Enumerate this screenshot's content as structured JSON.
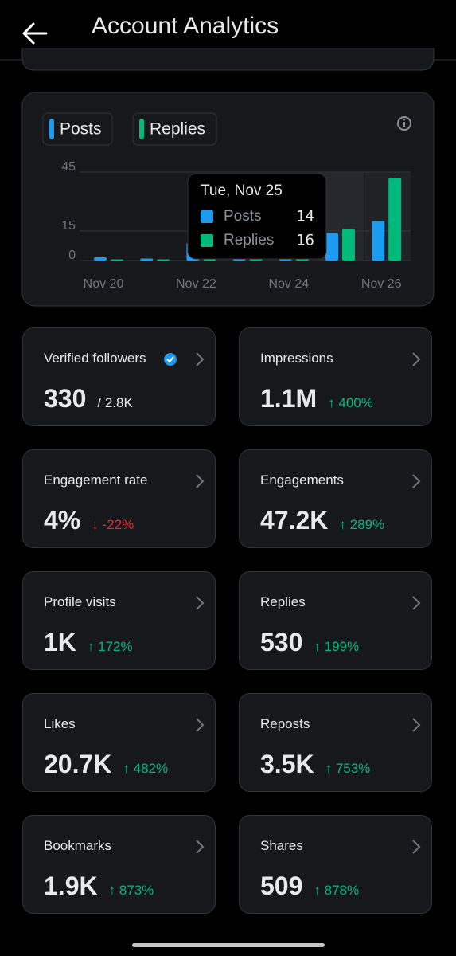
{
  "header": {
    "title": "Account Analytics"
  },
  "chart_data": {
    "type": "bar",
    "categories": [
      "Nov 20",
      null,
      "Nov 22",
      null,
      "Nov 24",
      null,
      "Nov 26"
    ],
    "series": [
      {
        "name": "Posts",
        "color": "#1d9bf0",
        "values": [
          1.6,
          1,
          9,
          3,
          3,
          14,
          20
        ]
      },
      {
        "name": "Replies",
        "color": "#00ba7c",
        "values": [
          0.6,
          0.6,
          3,
          1,
          1,
          16,
          42
        ]
      }
    ],
    "ylim": [
      0,
      45
    ],
    "yticks": [
      0,
      15,
      45
    ],
    "grid": true,
    "tooltip": "Tue, Nov 25"
  },
  "cards": [
    {
      "title": "Verified followers",
      "value": "330",
      "detail": "/ 2.8K",
      "color": "#e7e9ea"
    },
    {
      "title": "Impressions",
      "value": "1.1M",
      "detail": "↑ 400%",
      "color": "#00ba7c"
    },
    {
      "title": "Engagement rate",
      "value": "4%",
      "detail": "↓ -22%",
      "color": "#f4212e"
    },
    {
      "title": "Engagements",
      "value": "47.2K",
      "detail": "↑ 289%",
      "color": "#00ba7c"
    },
    {
      "title": "Profile visits",
      "value": "1K",
      "detail": "↑ 172%",
      "color": "#00ba7c"
    },
    {
      "title": "Replies",
      "value": "530",
      "detail": "↑ 199%",
      "color": "#00ba7c"
    },
    {
      "title": "Likes",
      "value": "20.7K",
      "detail": "↑ 482%",
      "color": "#00ba7c"
    },
    {
      "title": "Reposts",
      "value": "3.5K",
      "detail": "↑ 753%",
      "color": "#00ba7c"
    },
    {
      "title": "Bookmarks",
      "value": "1.9K",
      "detail": "↑ 873%",
      "color": "#00ba7c"
    },
    {
      "title": "Shares",
      "value": "509",
      "detail": "↑ 878%",
      "color": "#00ba7c"
    }
  ]
}
